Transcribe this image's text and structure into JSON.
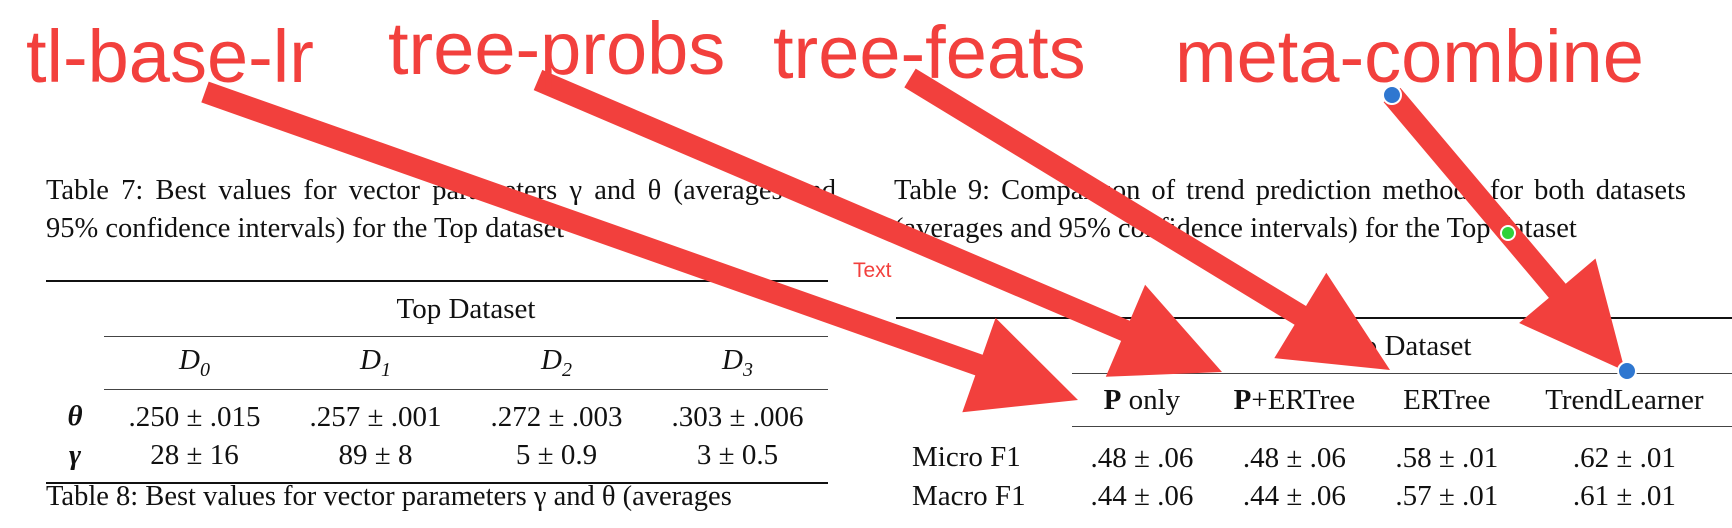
{
  "annotations": {
    "labels": [
      "tl-base-lr",
      "tree-probs",
      "tree-feats",
      "meta-combine"
    ],
    "text_tag": "Text",
    "arrow_color": "#f2403d",
    "handle_color": "#2f77d0",
    "green_handle_color": "#2fd23a"
  },
  "table7": {
    "caption": "Table 7: Best values for vector parameters γ and θ (averages and 95% confidence intervals) for the Top dataset",
    "group_header": "Top Dataset",
    "columns": [
      {
        "base": "D",
        "sub": "0"
      },
      {
        "base": "D",
        "sub": "1"
      },
      {
        "base": "D",
        "sub": "2"
      },
      {
        "base": "D",
        "sub": "3"
      }
    ],
    "rows": [
      {
        "label": "θ",
        "values": [
          ".250 ± .015",
          ".257 ± .001",
          ".272 ± .003",
          ".303 ± .006"
        ]
      },
      {
        "label": "γ",
        "values": [
          "28 ± 16",
          "89 ± 8",
          "5 ± 0.9",
          "3 ± 0.5"
        ]
      }
    ]
  },
  "table8": {
    "caption_partial": "Table 8: Best values for vector parameters γ and θ (averages"
  },
  "table9": {
    "caption": "Table 9: Comparison of trend prediction methods for both datasets (averages and 95% confidence intervals) for the Top dataset",
    "group_header": "Top Dataset",
    "columns": [
      {
        "bold": "P",
        "rest": " only"
      },
      {
        "bold": "P",
        "rest": "+ERTree"
      },
      {
        "bold": "",
        "rest": "ERTree"
      },
      {
        "bold": "",
        "rest": "TrendLearner"
      }
    ],
    "rows": [
      {
        "label": "Micro F1",
        "values": [
          ".48 ± .06",
          ".48 ± .06",
          ".58 ± .01",
          ".62 ± .01"
        ]
      },
      {
        "label": "Macro F1",
        "values": [
          ".44 ± .06",
          ".44 ± .06",
          ".57 ± .01",
          ".61 ± .01"
        ]
      }
    ]
  }
}
